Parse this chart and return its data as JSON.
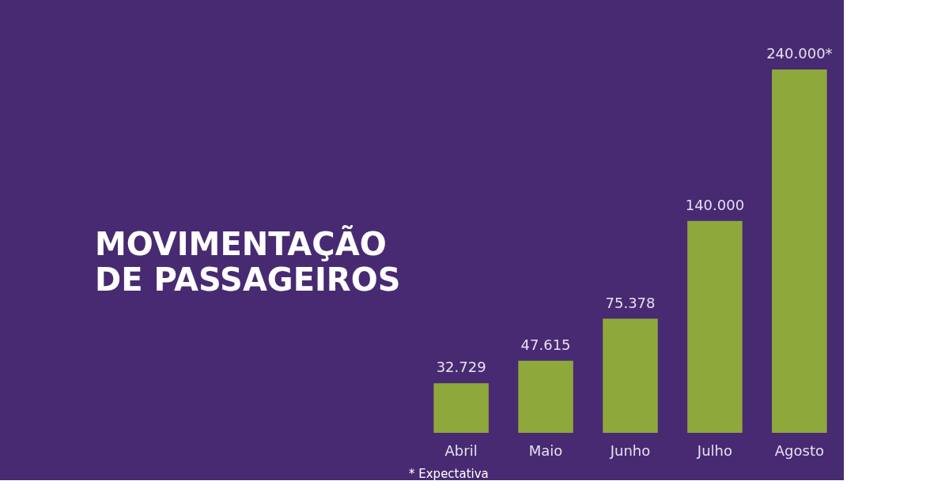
{
  "chart_data": {
    "type": "bar",
    "title": "MOVIMENTAÇÃO\nDE PASSAGEIROS",
    "categories": [
      "Abril",
      "Maio",
      "Junho",
      "Julho",
      "Agosto"
    ],
    "values": [
      32729,
      47615,
      75378,
      140000,
      240000
    ],
    "value_labels": [
      "32.729",
      "47.615",
      "75.378",
      "140.000",
      "240.000*"
    ],
    "color": "#8fa83c",
    "annotations": [
      "* Expectativa"
    ],
    "tick_labels": "x",
    "grid": false
  }
}
